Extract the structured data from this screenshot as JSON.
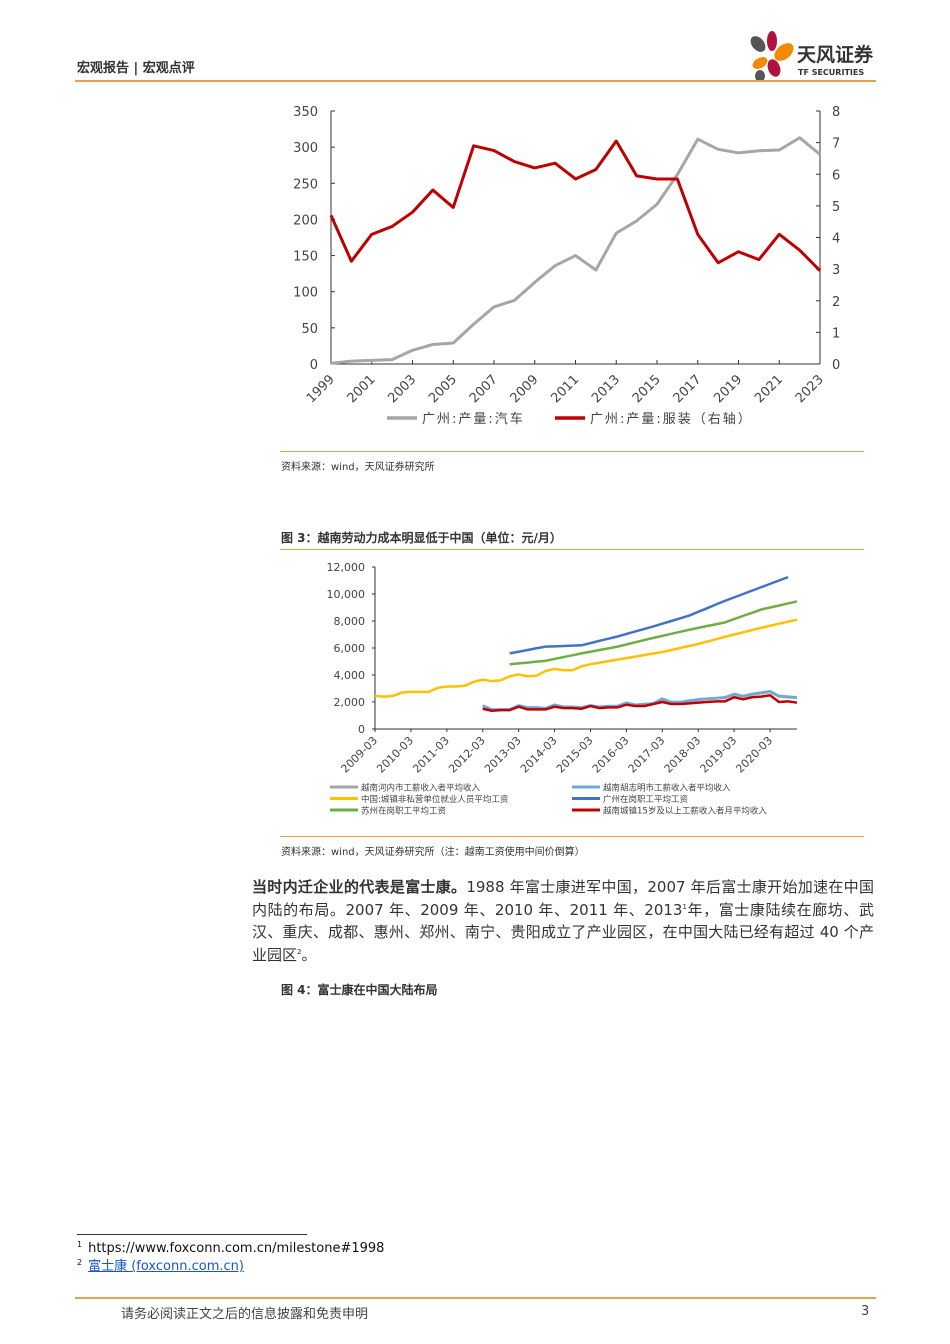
{
  "header": {
    "title": "宏观报告 | 宏观点评",
    "logo_cn": "天风证券",
    "logo_en": "TF SECURITIES",
    "colors": {
      "accent": "#e8a04a",
      "logo_orange": "#f08a00",
      "logo_red": "#b0123e",
      "logo_dark": "#555555"
    }
  },
  "chart_data": [
    {
      "type": "line",
      "title": "",
      "xlabel": "",
      "ylabel": "",
      "x": [
        1999,
        2000,
        2001,
        2002,
        2003,
        2004,
        2005,
        2006,
        2007,
        2008,
        2009,
        2010,
        2011,
        2012,
        2013,
        2014,
        2015,
        2016,
        2017,
        2018,
        2019,
        2020,
        2021,
        2022,
        2023
      ],
      "x_ticks": [
        "1999",
        "2001",
        "2003",
        "2005",
        "2007",
        "2009",
        "2011",
        "2013",
        "2015",
        "2017",
        "2019",
        "2021",
        "2023"
      ],
      "ylim": [
        0,
        350
      ],
      "y_ticks": [
        "0",
        "50",
        "100",
        "150",
        "200",
        "250",
        "300",
        "350"
      ],
      "y2lim": [
        0,
        8
      ],
      "y2_ticks": [
        "0",
        "1",
        "2",
        "3",
        "4",
        "5",
        "6",
        "7",
        "8"
      ],
      "legend_position": "bottom",
      "series": [
        {
          "name": "广州:产量:汽车",
          "axis": "left",
          "color": "#a6a6a6",
          "values": [
            1,
            4,
            5,
            6,
            19,
            27,
            29,
            55,
            79,
            88,
            113,
            136,
            150,
            130,
            181,
            198,
            221,
            262,
            311,
            297,
            292,
            295,
            296,
            313,
            290
          ]
        },
        {
          "name": "广州:产量:服装（右轴）",
          "axis": "right",
          "color": "#c00000",
          "values": [
            4.7,
            3.25,
            4.1,
            4.35,
            4.8,
            5.5,
            4.95,
            6.9,
            6.75,
            6.4,
            6.2,
            6.35,
            5.85,
            6.15,
            7.05,
            5.95,
            5.85,
            5.85,
            4.1,
            3.2,
            3.55,
            3.3,
            4.1,
            3.6,
            2.95
          ]
        }
      ]
    },
    {
      "type": "line",
      "title": "图 3：越南劳动力成本明显低于中国（单位：元/月）",
      "x_ticks": [
        "2009-03",
        "2010-03",
        "2011-03",
        "2012-03",
        "2013-03",
        "2014-03",
        "2015-03",
        "2016-03",
        "2017-03",
        "2018-03",
        "2019-03",
        "2020-03"
      ],
      "x_note": "quarterly, index 0 = 2009-03",
      "ylim": [
        0,
        12000
      ],
      "y_ticks": [
        "0",
        "2,000",
        "4,000",
        "6,000",
        "8,000",
        "10,000",
        "12,000"
      ],
      "legend_position": "bottom",
      "series": [
        {
          "name": "越南河内市工薪收入者平均收入",
          "color": "#a6a6a6",
          "start": 12,
          "values": [
            1700,
            1420,
            1420,
            1420,
            1700,
            1560,
            1560,
            1520,
            1760,
            1620,
            1620,
            1570,
            1720,
            1620,
            1670,
            1670,
            1910,
            1770,
            1810,
            1860,
            2200,
            1960,
            1960,
            2060,
            2160,
            2210,
            2260,
            2300,
            2550,
            2400,
            2550,
            2650,
            2750,
            2400,
            2350,
            2300
          ]
        },
        {
          "name": "越南胡志明市工薪收入者平均收入",
          "color": "#6fa8dc",
          "start": 12,
          "values": [
            1750,
            1450,
            1450,
            1450,
            1750,
            1600,
            1600,
            1550,
            1800,
            1650,
            1650,
            1600,
            1750,
            1650,
            1700,
            1700,
            1950,
            1800,
            1850,
            1900,
            2250,
            2000,
            2000,
            2100,
            2200,
            2250,
            2300,
            2350,
            2600,
            2450,
            2600,
            2700,
            2800,
            2450,
            2400,
            2350
          ]
        },
        {
          "name": "中国:城镇非私营单位就业人员平均工资",
          "color": "#ffc000",
          "start": 0,
          "values": [
            2450,
            2400,
            2450,
            2700,
            2750,
            2750,
            2750,
            3050,
            3150,
            3150,
            3200,
            3500,
            3650,
            3550,
            3600,
            3900,
            4050,
            3900,
            3950,
            4300,
            4450,
            4350,
            4350,
            4650,
            4800,
            4910,
            5030,
            5140,
            5250,
            5360,
            5480,
            5590,
            5700,
            5850,
            6000,
            6150,
            6300,
            6480,
            6650,
            6830,
            7000,
            7160,
            7330,
            7490,
            7650,
            7800,
            7950,
            8100
          ]
        },
        {
          "name": "广州在岗职工平均工资",
          "color": "#4472c4",
          "start": 15,
          "values": [
            5600,
            5720,
            5850,
            5980,
            6100,
            6120,
            6150,
            6180,
            6200,
            6360,
            6530,
            6690,
            6850,
            7040,
            7230,
            7410,
            7600,
            7800,
            8000,
            8200,
            8400,
            8680,
            8950,
            9230,
            9500,
            9750,
            10000,
            10250,
            10500,
            10750,
            11000,
            11250
          ]
        },
        {
          "name": "苏州在岗职工平均工资",
          "color": "#70ad47",
          "start": 15,
          "values": [
            4800,
            4860,
            4920,
            4990,
            5050,
            5190,
            5330,
            5460,
            5600,
            5720,
            5850,
            5970,
            6100,
            6260,
            6430,
            6590,
            6750,
            6900,
            7050,
            7200,
            7350,
            7490,
            7630,
            7760,
            7900,
            8140,
            8380,
            8610,
            8850,
            9000,
            9150,
            9300,
            9450
          ]
        },
        {
          "name": "越南城镇15岁及以上工薪收入者月平均收入",
          "color": "#c00000",
          "start": 12,
          "values": [
            1500,
            1350,
            1400,
            1400,
            1650,
            1450,
            1450,
            1450,
            1650,
            1550,
            1550,
            1500,
            1700,
            1550,
            1600,
            1600,
            1800,
            1700,
            1700,
            1850,
            2000,
            1850,
            1850,
            1900,
            1950,
            2000,
            2050,
            2050,
            2350,
            2200,
            2350,
            2400,
            2500,
            2000,
            2050,
            1950
          ]
        }
      ]
    }
  ],
  "chart1_source": "资料来源：wind，天风证券研究所",
  "fig3": {
    "title": "图 3：越南劳动力成本明显低于中国（单位：元/月）",
    "source": "资料来源：wind，天风证券研究所（注：越南工资使用中间价倒算）"
  },
  "paragraph": {
    "bold": "当时内迁企业的代表是富士康。",
    "text1": "1988 年富士康进军中国，2007 年后富士康开始加速在中国内陆的布局。2007 年、2009 年、2010 年、2011 年、2013",
    "sup1": "1",
    "text2": "年，富士康陆续在廊坊、武汉、重庆、成都、惠州、郑州、南宁、贵阳成立了产业园区，在中国大陆已经有超过 40 个产业园区",
    "sup2": "2",
    "text3": "。"
  },
  "fig4": {
    "title": "图 4：富士康在中国大陆布局"
  },
  "footnotes": [
    {
      "num": "1",
      "text": "https://www.foxconn.com.cn/milestone#1998"
    },
    {
      "num": "2",
      "text": "富士康 (foxconn.com.cn)"
    }
  ],
  "footer": {
    "disclaimer": "请务必阅读正文之后的信息披露和免责申明",
    "page": "3"
  }
}
